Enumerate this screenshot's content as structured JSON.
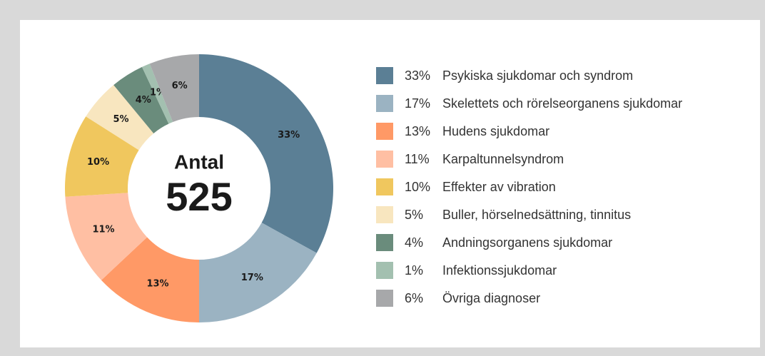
{
  "chart_data": {
    "type": "donut",
    "center_label": "Antal",
    "total": 525,
    "categories": [
      "Psykiska sjukdomar och syndrom",
      "Skelettets och rörelseorganens sjukdomar",
      "Hudens sjukdomar",
      "Karpaltunnelsyndrom",
      "Effekter av vibration",
      "Buller, hörselnedsättning, tinnitus",
      "Andningsorganens sjukdomar",
      "Infektionssjukdomar",
      "Övriga diagnoser"
    ],
    "values": [
      33,
      17,
      13,
      11,
      10,
      5,
      4,
      1,
      6
    ],
    "value_labels": [
      "33%",
      "17%",
      "13%",
      "11%",
      "10%",
      "5%",
      "4%",
      "1%",
      "6%"
    ],
    "colors": [
      "#5b7f95",
      "#9bb3c2",
      "#ff9966",
      "#ffbfa3",
      "#f0c75e",
      "#f8e6bf",
      "#6a8c7c",
      "#a3c0b0",
      "#a7a8aa"
    ]
  }
}
